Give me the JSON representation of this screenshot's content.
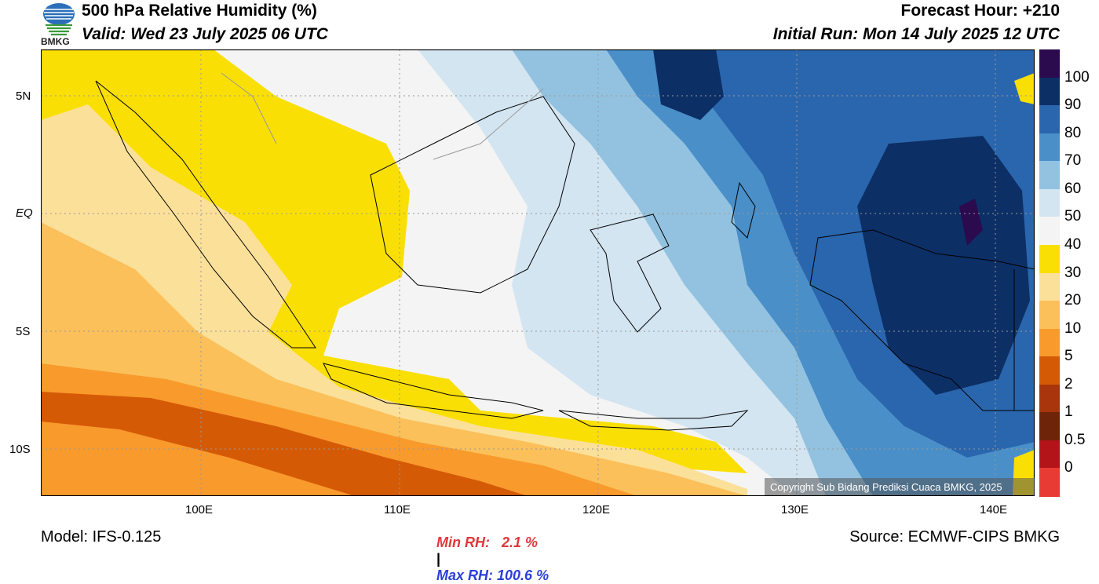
{
  "header": {
    "logo_text": "BMKG",
    "title": "500 hPa Relative Humidity (%)",
    "valid": "Valid: Wed 23 July 2025 06 UTC",
    "forecast_hour": "Forecast Hour: +210",
    "initial_run": "Initial Run: Mon 14 July 2025 12 UTC"
  },
  "map": {
    "lat_labels": [
      "5N",
      "EQ",
      "5S",
      "10S"
    ],
    "lon_labels": [
      "100E",
      "110E",
      "120E",
      "130E",
      "140E"
    ],
    "copyright": "Copyright Sub Bidang Prediksi Cuaca BMKG, 2025"
  },
  "colorbar": {
    "labels": [
      "100",
      "90",
      "80",
      "70",
      "60",
      "50",
      "40",
      "30",
      "20",
      "10",
      "5",
      "2",
      "1",
      "0.5",
      "0"
    ],
    "colors": [
      "#2b0a4e",
      "#0c2f66",
      "#2a66ad",
      "#4a8fc8",
      "#93c2e0",
      "#d3e5f1",
      "#f4f4f4",
      "#fadf04",
      "#fbe09a",
      "#fbc05a",
      "#f99a2c",
      "#d55a06",
      "#a8350b",
      "#6e2408",
      "#b2141a",
      "#e83b33"
    ]
  },
  "footer": {
    "model": "Model: IFS-0.125",
    "min_rh": "Min RH:   2.1 %",
    "separator": "|",
    "max_rh": "Max RH: 100.6 %",
    "source": "Source: ECMWF-CIPS BMKG"
  }
}
